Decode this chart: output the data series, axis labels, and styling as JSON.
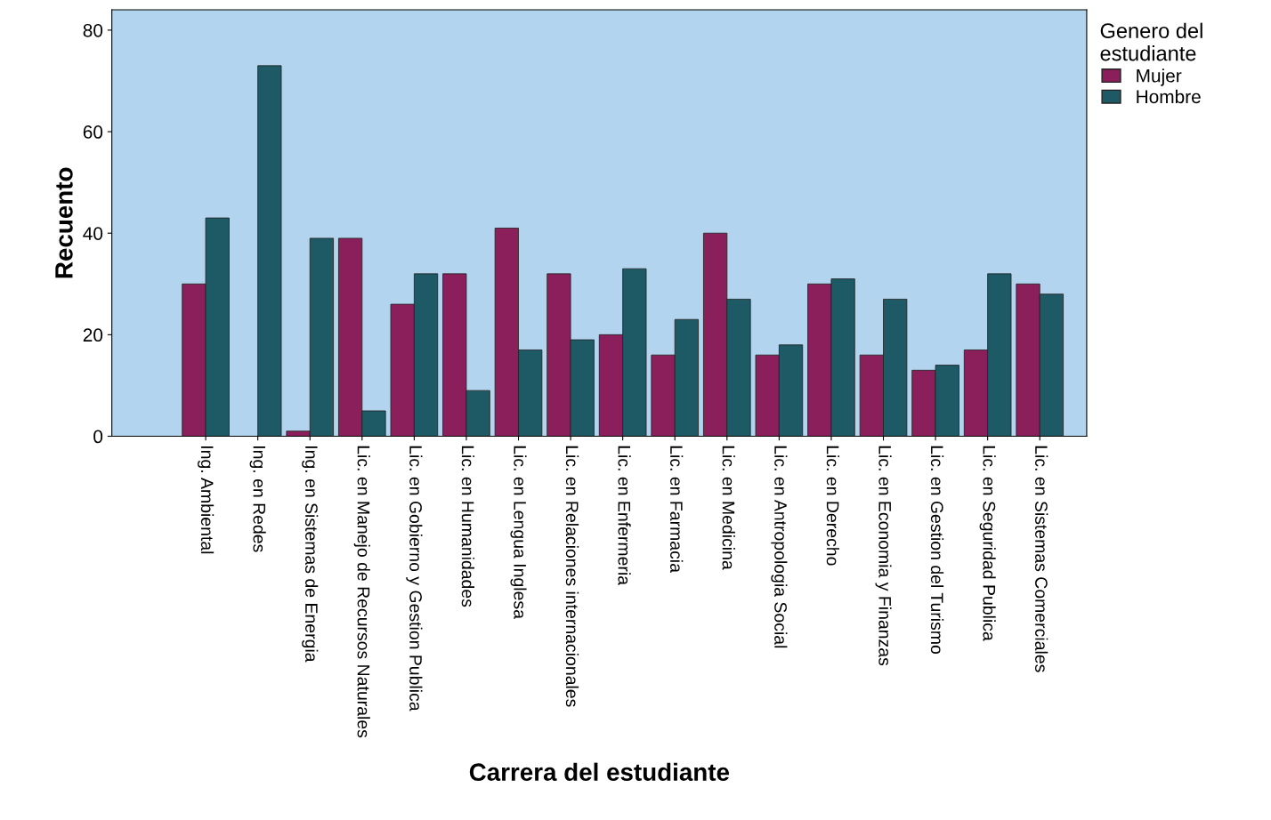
{
  "chart_data": {
    "type": "bar",
    "xlabel": "Carrera del estudiante",
    "ylabel": "Recuento",
    "legend_title": "Genero del estudiante",
    "legend": "top right",
    "grid": false,
    "categories": [
      "Ing. Ambiental",
      "Ing. en Redes",
      "Ing. en Sistemas de Energia",
      "Lic. en Manejo de Recursos Naturales",
      "Lic. en Gobierno y Gestion Publica",
      "Lic. en Humanidades",
      "Lic. en Lengua Inglesa",
      "Lic. en Relaciones internacionales",
      "Lic. en Enfermeria",
      "Lic. en Farmacia",
      "Lic. en Medicina",
      "Lic. en Antropologia Social",
      "Lic. en Derecho",
      "Lic. en Economia y Finanzas",
      "Lic. en Gestion del Turismo",
      "Lic. en Seguridad Publica",
      "Lic. en Sistemas Comerciales"
    ],
    "series": [
      {
        "name": "Mujer",
        "color": "#8a1f5c",
        "values": [
          30,
          0,
          1,
          39,
          26,
          32,
          41,
          32,
          20,
          16,
          40,
          16,
          30,
          16,
          13,
          17,
          30
        ]
      },
      {
        "name": "Hombre",
        "color": "#1d5a66",
        "values": [
          43,
          73,
          39,
          5,
          32,
          9,
          17,
          19,
          33,
          23,
          27,
          18,
          31,
          27,
          14,
          32,
          28
        ]
      }
    ],
    "ylim": [
      0,
      84
    ],
    "yticks": [
      0,
      20,
      40,
      60,
      80
    ]
  }
}
